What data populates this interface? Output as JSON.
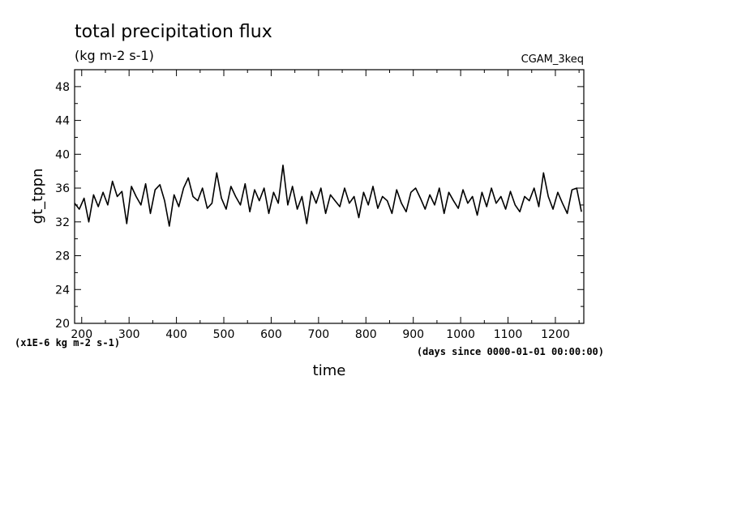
{
  "chart_data": {
    "type": "line",
    "title": "total precipitation flux",
    "subtitle": "(kg m-2 s-1)",
    "dataset_label": "CGAM_3keq",
    "xlabel": "time",
    "ylabel": "gt_tppn",
    "x_units_note": "(days since 0000-01-01 00:00:00)",
    "y_scale_note": "(x1E-6 kg m-2 s-1)",
    "xlim": [
      185,
      1260
    ],
    "ylim": [
      20,
      50
    ],
    "x_ticks": [
      200,
      300,
      400,
      500,
      600,
      700,
      800,
      900,
      1000,
      1100,
      1200
    ],
    "y_ticks": [
      20,
      24,
      28,
      32,
      36,
      40,
      44,
      48
    ],
    "grid": false,
    "series": [
      {
        "x": [
          185,
          195,
          205,
          215,
          225,
          235,
          245,
          255,
          265,
          275,
          285,
          295,
          305,
          315,
          325,
          335,
          345,
          355,
          365,
          375,
          385,
          395,
          405,
          415,
          425,
          435,
          445,
          455,
          465,
          475,
          485,
          495,
          505,
          515,
          525,
          535,
          545,
          555,
          565,
          575,
          585,
          595,
          605,
          615,
          625,
          635,
          645,
          655,
          665,
          675,
          685,
          695,
          705,
          715,
          725,
          735,
          745,
          755,
          765,
          775,
          785,
          795,
          805,
          815,
          825,
          835,
          845,
          855,
          865,
          875,
          885,
          895,
          905,
          915,
          925,
          935,
          945,
          955,
          965,
          975,
          985,
          995,
          1005,
          1015,
          1025,
          1035,
          1045,
          1055,
          1065,
          1075,
          1085,
          1095,
          1105,
          1115,
          1125,
          1135,
          1145,
          1155,
          1165,
          1175,
          1185,
          1195,
          1205,
          1215,
          1225,
          1235,
          1245,
          1255
        ],
        "values": [
          34.2,
          33.5,
          34.8,
          32.0,
          35.2,
          33.8,
          35.5,
          34.0,
          36.8,
          35.0,
          35.6,
          31.8,
          36.2,
          35.0,
          34.0,
          36.5,
          33.0,
          35.8,
          36.4,
          34.5,
          31.5,
          35.2,
          33.8,
          36.0,
          37.2,
          35.0,
          34.5,
          36.0,
          33.6,
          34.2,
          37.8,
          34.8,
          33.5,
          36.2,
          35.0,
          34.0,
          36.5,
          33.2,
          35.8,
          34.5,
          36.0,
          33.0,
          35.5,
          34.2,
          38.7,
          34.0,
          36.2,
          33.5,
          35.0,
          31.8,
          35.6,
          34.2,
          36.0,
          33.0,
          35.2,
          34.5,
          33.8,
          36.0,
          34.2,
          35.0,
          32.5,
          35.5,
          34.0,
          36.2,
          33.6,
          35.0,
          34.5,
          33.0,
          35.8,
          34.2,
          33.2,
          35.5,
          36.0,
          34.8,
          33.5,
          35.2,
          34.0,
          36.0,
          33.0,
          35.5,
          34.5,
          33.6,
          35.8,
          34.2,
          35.0,
          32.8,
          35.5,
          33.8,
          36.0,
          34.2,
          35.0,
          33.5,
          35.6,
          34.0,
          33.2,
          35.0,
          34.5,
          36.0,
          33.8,
          37.8,
          35.0,
          33.5,
          35.5,
          34.2,
          33.0,
          35.8,
          36.0,
          33.2
        ]
      }
    ]
  }
}
